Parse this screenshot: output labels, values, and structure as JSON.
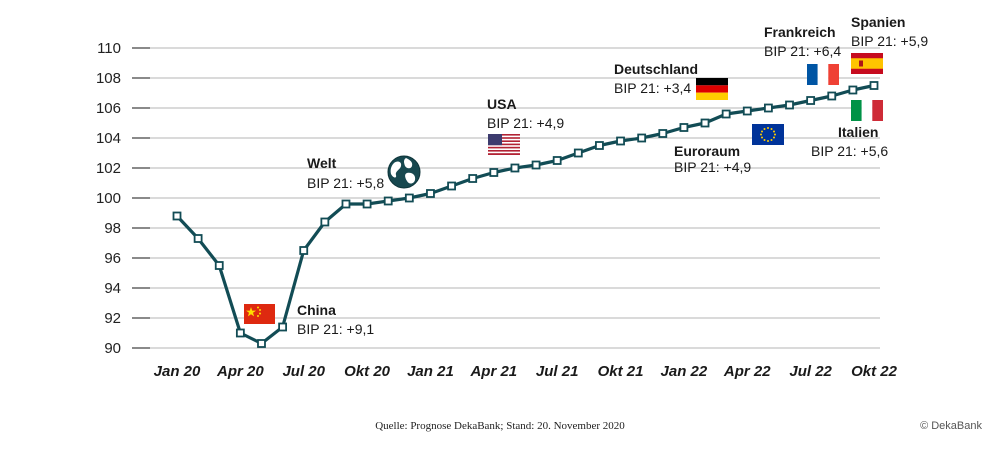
{
  "chart_data": {
    "type": "line",
    "x": [
      "Jan 20",
      "Feb 20",
      "Mar 20",
      "Apr 20",
      "Mai 20",
      "Jun 20",
      "Jul 20",
      "Aug 20",
      "Sep 20",
      "Okt 20",
      "Nov 20",
      "Dez 20",
      "Jan 21",
      "Feb 21",
      "Mar 21",
      "Apr 21",
      "Mai 21",
      "Jun 21",
      "Jul 21",
      "Aug 21",
      "Sep 21",
      "Okt 21",
      "Nov 21",
      "Dez 21",
      "Jan 22",
      "Feb 22",
      "Mar 22",
      "Apr 22",
      "Mai 22",
      "Jun 22",
      "Jul 22",
      "Aug 22",
      "Sep 22",
      "Okt 22"
    ],
    "series": [
      {
        "name": "",
        "values": [
          98.8,
          97.3,
          95.5,
          91.0,
          90.3,
          91.4,
          96.5,
          98.4,
          99.6,
          99.6,
          99.8,
          100.0,
          100.3,
          100.8,
          101.3,
          101.7,
          102.0,
          102.2,
          102.5,
          103.0,
          103.5,
          103.8,
          104.0,
          104.3,
          104.7,
          105.0,
          105.6,
          105.8,
          106.0,
          106.2,
          106.5,
          106.8,
          107.2,
          107.5
        ]
      }
    ],
    "x_tick_labels": [
      "Jan 20",
      "Apr 20",
      "Jul 20",
      "Okt 20",
      "Jan 21",
      "Apr 21",
      "Jul 21",
      "Okt 21",
      "Jan 22",
      "Apr 22",
      "Jul 22",
      "Okt 22"
    ],
    "y_ticks": [
      90,
      92,
      94,
      96,
      98,
      100,
      102,
      104,
      106,
      108,
      110
    ],
    "ylim": [
      90,
      110
    ],
    "title": "",
    "xlabel": "",
    "ylabel": "",
    "grid": "horizontal",
    "line_color": "#124c55",
    "annotations": [
      {
        "name": "China",
        "value": "BIP 21: +9,1",
        "icon": "china-flag-icon"
      },
      {
        "name": "Welt",
        "value": "BIP 21: +5,8",
        "icon": "globe-icon"
      },
      {
        "name": "USA",
        "value": "BIP 21: +4,9",
        "icon": "usa-flag-icon"
      },
      {
        "name": "Deutschland",
        "value": "BIP 21: +3,4",
        "icon": "germany-flag-icon"
      },
      {
        "name": "Euroraum",
        "value": "BIP 21: +4,9",
        "icon": "eu-flag-icon"
      },
      {
        "name": "Frankreich",
        "value": "BIP 21: +6,4",
        "icon": "france-flag-icon"
      },
      {
        "name": "Spanien",
        "value": "BIP 21: +5,9",
        "icon": "spain-flag-icon"
      },
      {
        "name": "Italien",
        "value": "BIP 21: +5,6",
        "icon": "italy-flag-icon"
      }
    ]
  },
  "footer": {
    "source": "Quelle: Prognose DekaBank; Stand: 20. November 2020",
    "copyright": "© DekaBank"
  }
}
